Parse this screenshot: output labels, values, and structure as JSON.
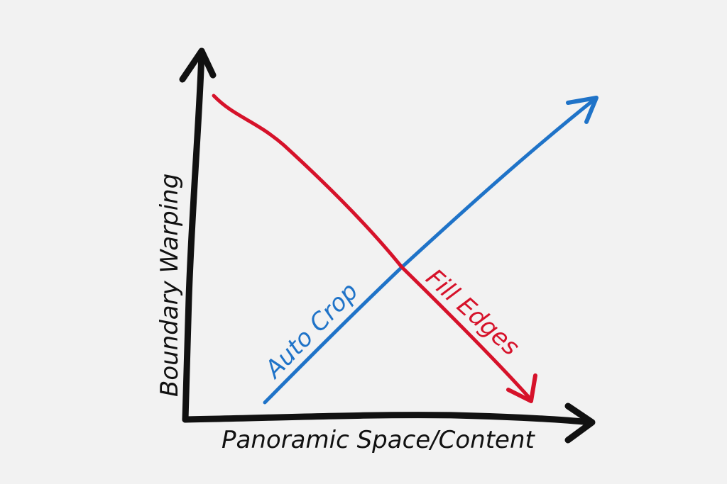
{
  "diagram": {
    "x_axis_label": "Panoramic Space/Content",
    "y_axis_label": "Boundary Warping",
    "lines": [
      {
        "id": "auto-crop",
        "label": "Auto Crop",
        "color": "#1f73c8",
        "trend": "increasing"
      },
      {
        "id": "fill-edges",
        "label": "Fill Edges",
        "color": "#d6122a",
        "trend": "decreasing"
      }
    ],
    "colors": {
      "background": "#f2f2f2",
      "axes": "#111111"
    }
  }
}
